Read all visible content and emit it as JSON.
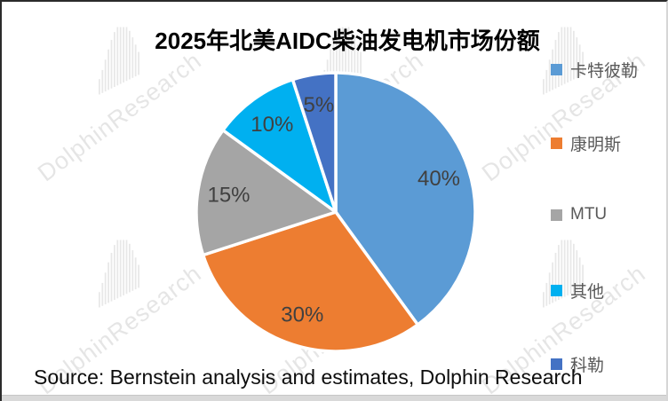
{
  "title": "2025年北美AIDC柴油发电机市场份额",
  "source_text": "Source: Bernstein analysis and estimates, Dolphin Research",
  "watermark_text": "DolphinResearch",
  "chart_data": {
    "type": "pie",
    "title": "2025年北美AIDC柴油发电机市场份额",
    "series": [
      {
        "name": "卡特彼勒",
        "value": 40,
        "color": "#5B9BD5"
      },
      {
        "name": "康明斯",
        "value": 30,
        "color": "#ED7D31"
      },
      {
        "name": "MTU",
        "value": 15,
        "color": "#A5A5A5"
      },
      {
        "name": "其他",
        "value": 10,
        "color": "#00B0F0"
      },
      {
        "name": "科勒",
        "value": 5,
        "color": "#4472C4"
      }
    ],
    "labels": [
      "40%",
      "30%",
      "15%",
      "10%",
      "5%"
    ],
    "label_format": "percent",
    "label_color": "#404040",
    "slice_border_color": "#FFFFFF",
    "legend_position": "right",
    "legend_text_color": "#595959",
    "start_angle_deg": 0,
    "direction": "clockwise"
  }
}
